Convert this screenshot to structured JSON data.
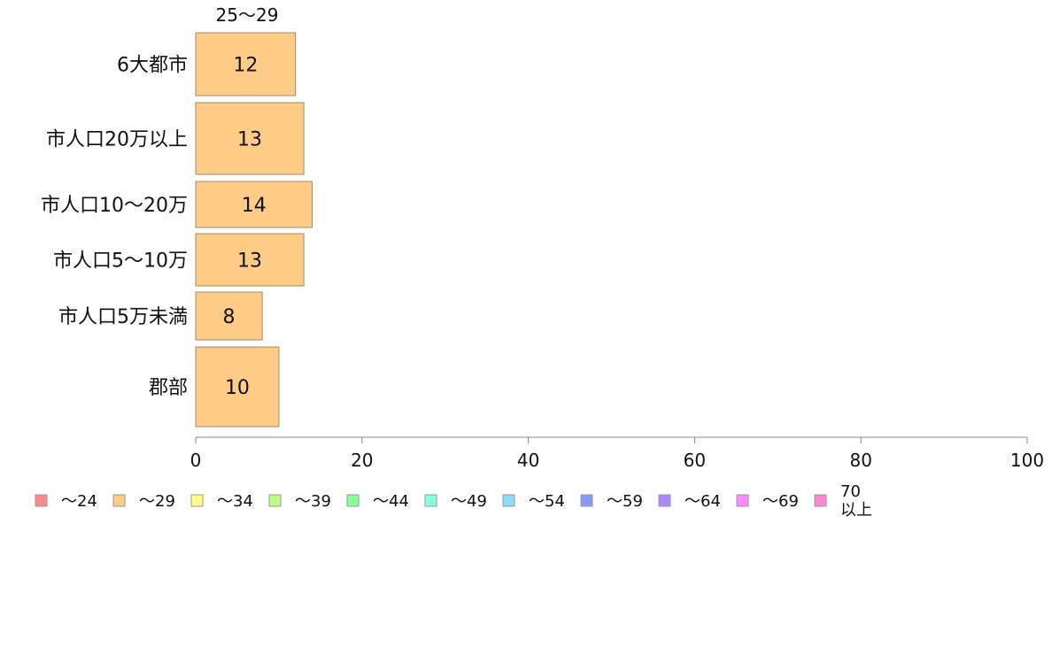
{
  "chart_data": {
    "type": "bar",
    "orientation": "horizontal",
    "series_label": "25〜29",
    "categories": [
      "6大都市",
      "市人口20万以上",
      "市人口10〜20万",
      "市人口5〜10万",
      "市人口5万未満",
      "郡部"
    ],
    "values": [
      12,
      13,
      14,
      13,
      8,
      10
    ],
    "value_labels": [
      "12",
      "13",
      "14",
      "13",
      "8",
      "10"
    ],
    "xlim": [
      0,
      100
    ],
    "xticks": [
      0,
      20,
      40,
      60,
      80,
      100
    ],
    "bar_color": "#ffcc88",
    "bar_stroke": "#a08a70",
    "axis_color": "#888888",
    "legend_position": "bottom",
    "legend": [
      {
        "label": "〜24",
        "color": "#ff8888"
      },
      {
        "label": "〜29",
        "color": "#ffcc88"
      },
      {
        "label": "〜34",
        "color": "#ffff88"
      },
      {
        "label": "〜39",
        "color": "#bbff88"
      },
      {
        "label": "〜44",
        "color": "#88ff99"
      },
      {
        "label": "〜49",
        "color": "#88ffdd"
      },
      {
        "label": "〜54",
        "color": "#88ddff"
      },
      {
        "label": "〜59",
        "color": "#8899ff"
      },
      {
        "label": "〜64",
        "color": "#aa88ff"
      },
      {
        "label": "〜69",
        "color": "#ff88ff"
      },
      {
        "label": "70\n以上",
        "color": "#ff88cc"
      }
    ]
  }
}
